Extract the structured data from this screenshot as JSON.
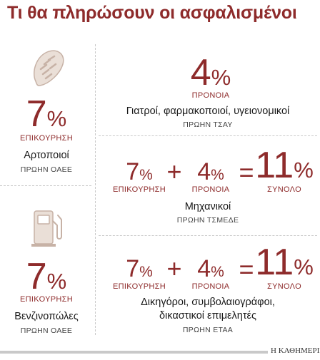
{
  "title": "Τι θα πληρώσουν οι ασφαλισμένοι",
  "credit": "Η ΚΑΘΗΜΕΡΙΝΗ",
  "colors": {
    "accent": "#8e2b2b",
    "divider": "#c9c9c9"
  },
  "pct_sign": "%",
  "plus": "+",
  "equals": "=",
  "left": [
    {
      "icon": "bread-icon",
      "value": "7",
      "label": "ΕΠΙΚΟΥΡΗΣΗ",
      "name": "Αρτοποιοί",
      "former": "ΠΡΩΗΝ ΟΑΕΕ"
    },
    {
      "icon": "fuel-pump-icon",
      "value": "7",
      "label": "ΕΠΙΚΟΥΡΗΣΗ",
      "name": "Βενζινοπώλες",
      "former": "ΠΡΩΗΝ ΟΑΕΕ"
    }
  ],
  "right": [
    {
      "prov_value": "4",
      "prov_label": "ΠΡΟΝΟΙΑ",
      "name": "Γιατροί, φαρμακοποιοί, υγειονομικοί",
      "former": "ΠΡΩΗΝ ΤΣΑΥ"
    },
    {
      "aux_value": "7",
      "aux_label": "ΕΠΙΚΟΥΡΗΣΗ",
      "prov_value": "4",
      "prov_label": "ΠΡΟΝΟΙΑ",
      "total_value": "11",
      "total_label": "ΣΥΝΟΛΟ",
      "name": "Μηχανικοί",
      "former": "ΠΡΩΗΝ ΤΣΜΕΔΕ"
    },
    {
      "aux_value": "7",
      "aux_label": "ΕΠΙΚΟΥΡΗΣΗ",
      "prov_value": "4",
      "prov_label": "ΠΡΟΝΟΙΑ",
      "total_value": "11",
      "total_label": "ΣΥΝΟΛΟ",
      "name_line1": "Δικηγόροι, συμβολαιογράφοι,",
      "name_line2": "δικαστικοί επιμελητές",
      "former": "ΠΡΩΗΝ ΕΤΑΑ"
    }
  ]
}
